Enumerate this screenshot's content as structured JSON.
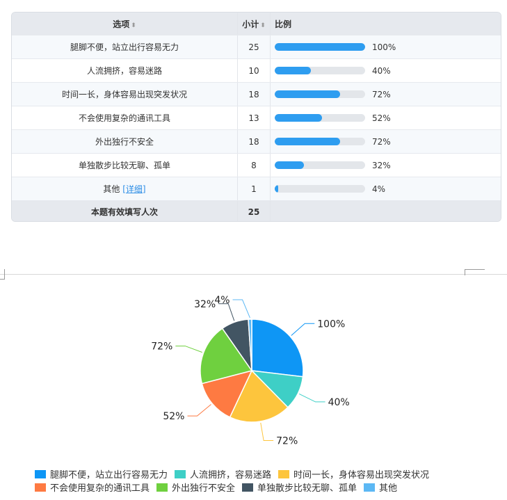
{
  "table": {
    "headers": {
      "option": "选项",
      "count": "小计",
      "ratio": "比例",
      "sort_icon": "sort-arrows-icon"
    },
    "rows": [
      {
        "label": "腿脚不便，站立出行容易无力",
        "count": "25",
        "pct_text": "100%",
        "pct": 100
      },
      {
        "label": "人流拥挤，容易迷路",
        "count": "10",
        "pct_text": "40%",
        "pct": 40
      },
      {
        "label": "时间一长，身体容易出现突发状况",
        "count": "18",
        "pct_text": "72%",
        "pct": 72
      },
      {
        "label": "不会使用复杂的通讯工具",
        "count": "13",
        "pct_text": "52%",
        "pct": 52
      },
      {
        "label": "外出独行不安全",
        "count": "18",
        "pct_text": "72%",
        "pct": 72
      },
      {
        "label": "单独散步比较无聊、孤单",
        "count": "8",
        "pct_text": "32%",
        "pct": 32
      },
      {
        "label": "其他",
        "detail": "[详细]",
        "count": "1",
        "pct_text": "4%",
        "pct": 4
      }
    ],
    "footer": {
      "label": "本题有效填写人次",
      "count": "25"
    },
    "bar_color": "#2e9df0"
  },
  "chart_data": {
    "type": "pie",
    "categories": [
      "腿脚不便，站立出行容易无力",
      "人流拥挤，容易迷路",
      "时间一长，身体容易出现突发状况",
      "不会使用复杂的通讯工具",
      "外出独行不安全",
      "单独散步比较无聊、孤单",
      "其他"
    ],
    "values": [
      25,
      10,
      18,
      13,
      18,
      8,
      1
    ],
    "data_labels": [
      "100%",
      "40%",
      "72%",
      "52%",
      "72%",
      "32%",
      "4%"
    ],
    "colors": [
      "#0e96f5",
      "#3ecfc6",
      "#fdc53d",
      "#fe7a42",
      "#6fd03f",
      "#425563",
      "#5cb8f4"
    ],
    "legend_position": "bottom"
  }
}
